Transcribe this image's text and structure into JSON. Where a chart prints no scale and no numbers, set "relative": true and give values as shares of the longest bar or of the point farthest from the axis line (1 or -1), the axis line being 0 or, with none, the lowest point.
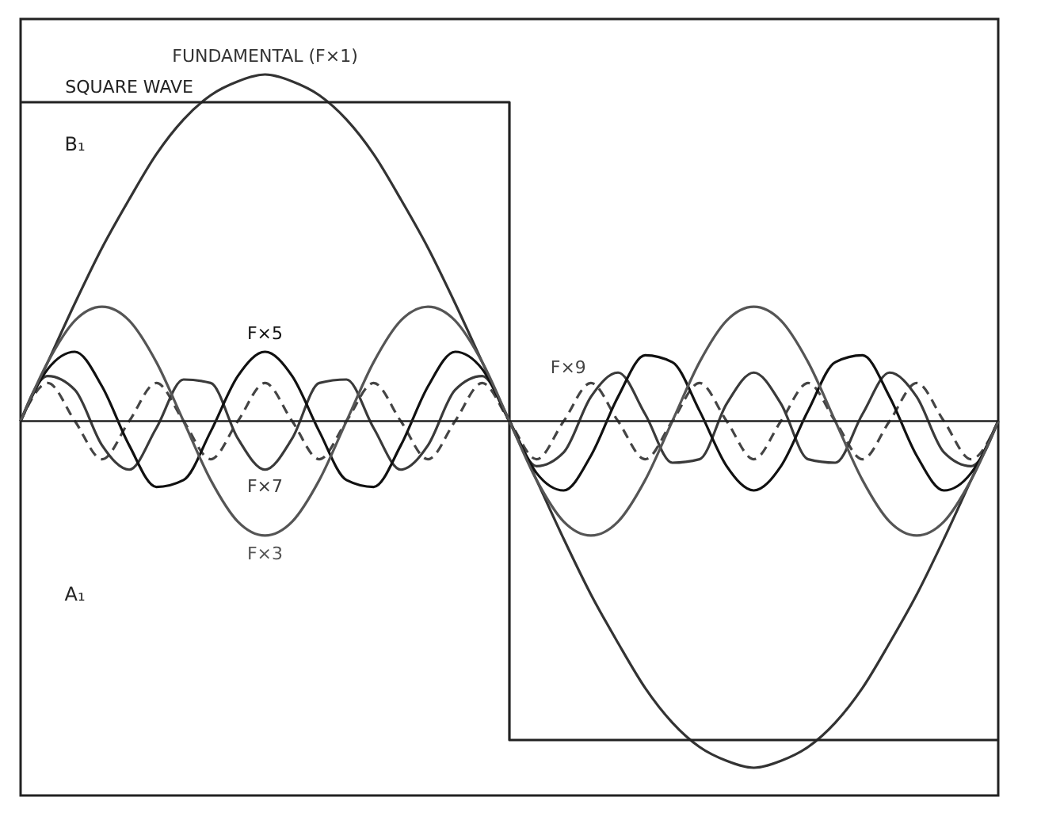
{
  "chart_data": {
    "type": "line",
    "relative": true,
    "categories": [
      null,
      null,
      null,
      null,
      null,
      null,
      null,
      null,
      null,
      null,
      null,
      null,
      null,
      null,
      null,
      null,
      null,
      null,
      null,
      null,
      null,
      null,
      null,
      null,
      null,
      null,
      null,
      null,
      null,
      null,
      null,
      null,
      null,
      null,
      null,
      null,
      null
    ],
    "series": [
      {
        "name": "FUNDAMENTAL (F×1)",
        "color": "#333333",
        "values": [
          0,
          0.17,
          0.34,
          0.5,
          0.64,
          0.77,
          0.87,
          0.94,
          0.98,
          1,
          0.98,
          0.94,
          0.87,
          0.77,
          0.64,
          0.5,
          0.34,
          0.17,
          0,
          -0.17,
          -0.34,
          -0.5,
          -0.64,
          -0.77,
          -0.87,
          -0.94,
          -0.98,
          -1,
          -0.98,
          -0.94,
          -0.87,
          -0.77,
          -0.64,
          -0.5,
          -0.34,
          -0.17,
          0
        ]
      },
      {
        "name": "SQUARE WAVE",
        "type": "step",
        "color": "#222222",
        "values": [
          0.92,
          0.92,
          0.92,
          0.92,
          0.92,
          0.92,
          0.92,
          0.92,
          0.92,
          0.92,
          0.92,
          0.92,
          0.92,
          0.92,
          0.92,
          0.92,
          0.92,
          0.92,
          -0.92,
          -0.92,
          -0.92,
          -0.92,
          -0.92,
          -0.92,
          -0.92,
          -0.92,
          -0.92,
          -0.92,
          -0.92,
          -0.92,
          -0.92,
          -0.92,
          -0.92,
          -0.92,
          -0.92,
          -0.92,
          -0.92
        ]
      },
      {
        "name": "F×9",
        "color": "#444444",
        "line_style": "dashed",
        "values": [
          0,
          0.11,
          0,
          -0.11,
          0,
          0.11,
          0,
          -0.11,
          0,
          0.11,
          0,
          -0.11,
          0,
          0.11,
          0,
          -0.11,
          0,
          0.11,
          0,
          -0.11,
          0,
          0.11,
          0,
          -0.11,
          0,
          0.11,
          0,
          -0.11,
          0,
          0.11,
          0,
          -0.11,
          0,
          0.11,
          0,
          -0.11,
          0
        ]
      },
      {
        "name": "F×7",
        "color": "#3a3a3a",
        "values": [
          0,
          0.13,
          0.09,
          -0.07,
          -0.14,
          -0.02,
          0.12,
          0.11,
          -0.05,
          -0.14,
          -0.05,
          0.11,
          0.12,
          -0.02,
          -0.14,
          -0.07,
          0.09,
          0.13,
          0,
          -0.13,
          -0.09,
          0.07,
          0.14,
          0.02,
          -0.12,
          -0.11,
          0.05,
          0.14,
          0.05,
          -0.11,
          -0.12,
          0.02,
          0.14,
          0.07,
          -0.09,
          -0.13,
          0
        ]
      },
      {
        "name": "F×5",
        "color": "#111111",
        "values": [
          0,
          0.15,
          0.2,
          0.1,
          -0.07,
          -0.19,
          -0.17,
          -0.03,
          0.13,
          0.2,
          0.13,
          -0.03,
          -0.17,
          -0.19,
          -0.07,
          0.1,
          0.2,
          0.15,
          0,
          -0.15,
          -0.2,
          -0.1,
          0.07,
          0.19,
          0.17,
          0.03,
          -0.13,
          -0.2,
          -0.13,
          0.03,
          0.17,
          0.19,
          0.07,
          -0.1,
          -0.2,
          -0.15,
          0
        ]
      },
      {
        "name": "F×3",
        "color": "#555555",
        "values": [
          0,
          0.17,
          0.29,
          0.33,
          0.29,
          0.17,
          0,
          -0.17,
          -0.29,
          -0.33,
          -0.29,
          -0.17,
          0,
          0.17,
          0.29,
          0.33,
          0.29,
          0.17,
          0,
          -0.17,
          -0.29,
          -0.33,
          -0.29,
          -0.17,
          0,
          0.17,
          0.29,
          0.33,
          0.29,
          0.17,
          0,
          -0.17,
          -0.29,
          -0.33,
          -0.29,
          -0.17,
          0
        ]
      }
    ],
    "annotations": [
      "B₁",
      "A₁"
    ]
  }
}
